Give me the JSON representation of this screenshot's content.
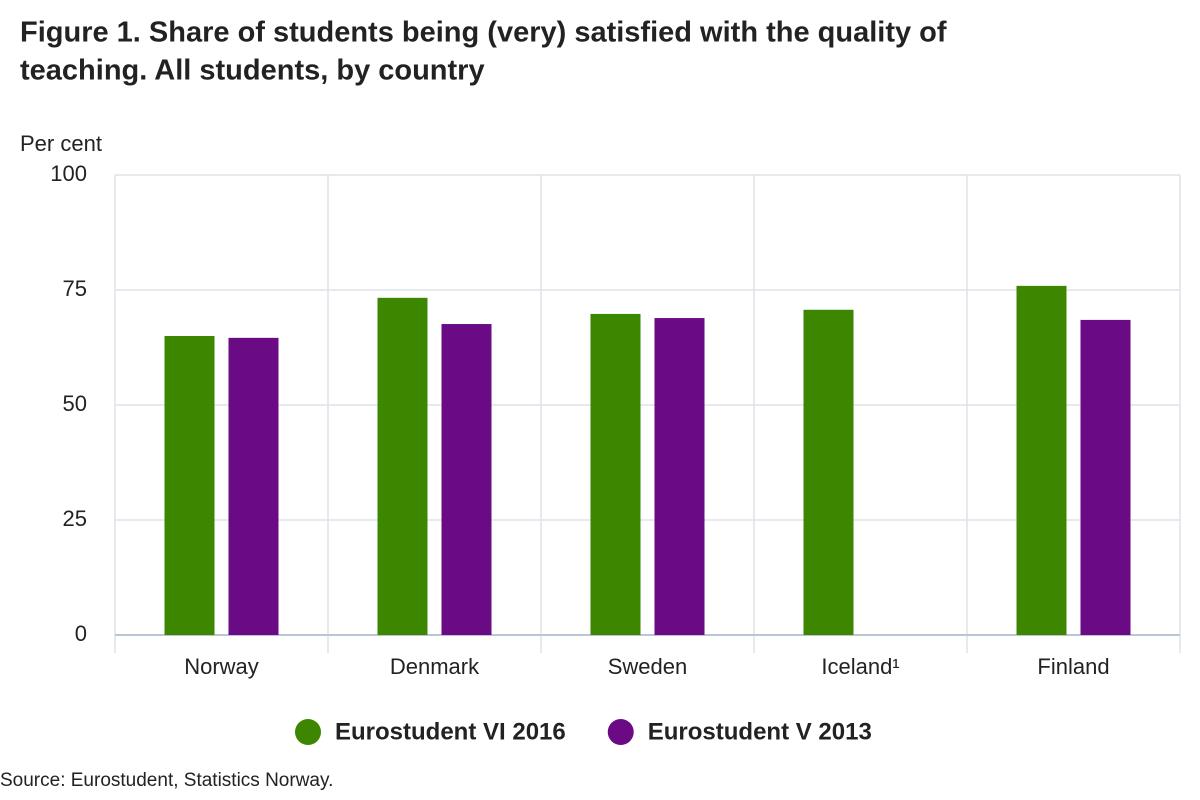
{
  "chart_data": {
    "type": "bar",
    "title": "Figure 1. Share of students being (very) satisfied with the quality of",
    "subtitle": "teaching. All students, by country",
    "y_label": "Per cent",
    "source": "Source: Eurostudent, Statistics Norway.",
    "categories": [
      "Norway",
      "Denmark",
      "Sweden",
      "Iceland¹",
      "Finland"
    ],
    "series": [
      {
        "name": "Eurostudent VI 2016",
        "color": "#3d8600",
        "values": [
          65.0,
          73.3,
          69.8,
          70.7,
          75.9
        ]
      },
      {
        "name": "Eurostudent V 2013",
        "color": "#6a0a85",
        "values": [
          64.6,
          67.6,
          68.9,
          null,
          68.5
        ]
      }
    ],
    "ylim": [
      0,
      100
    ],
    "yticks": [
      0,
      25,
      50,
      75,
      100
    ],
    "grid": true
  }
}
